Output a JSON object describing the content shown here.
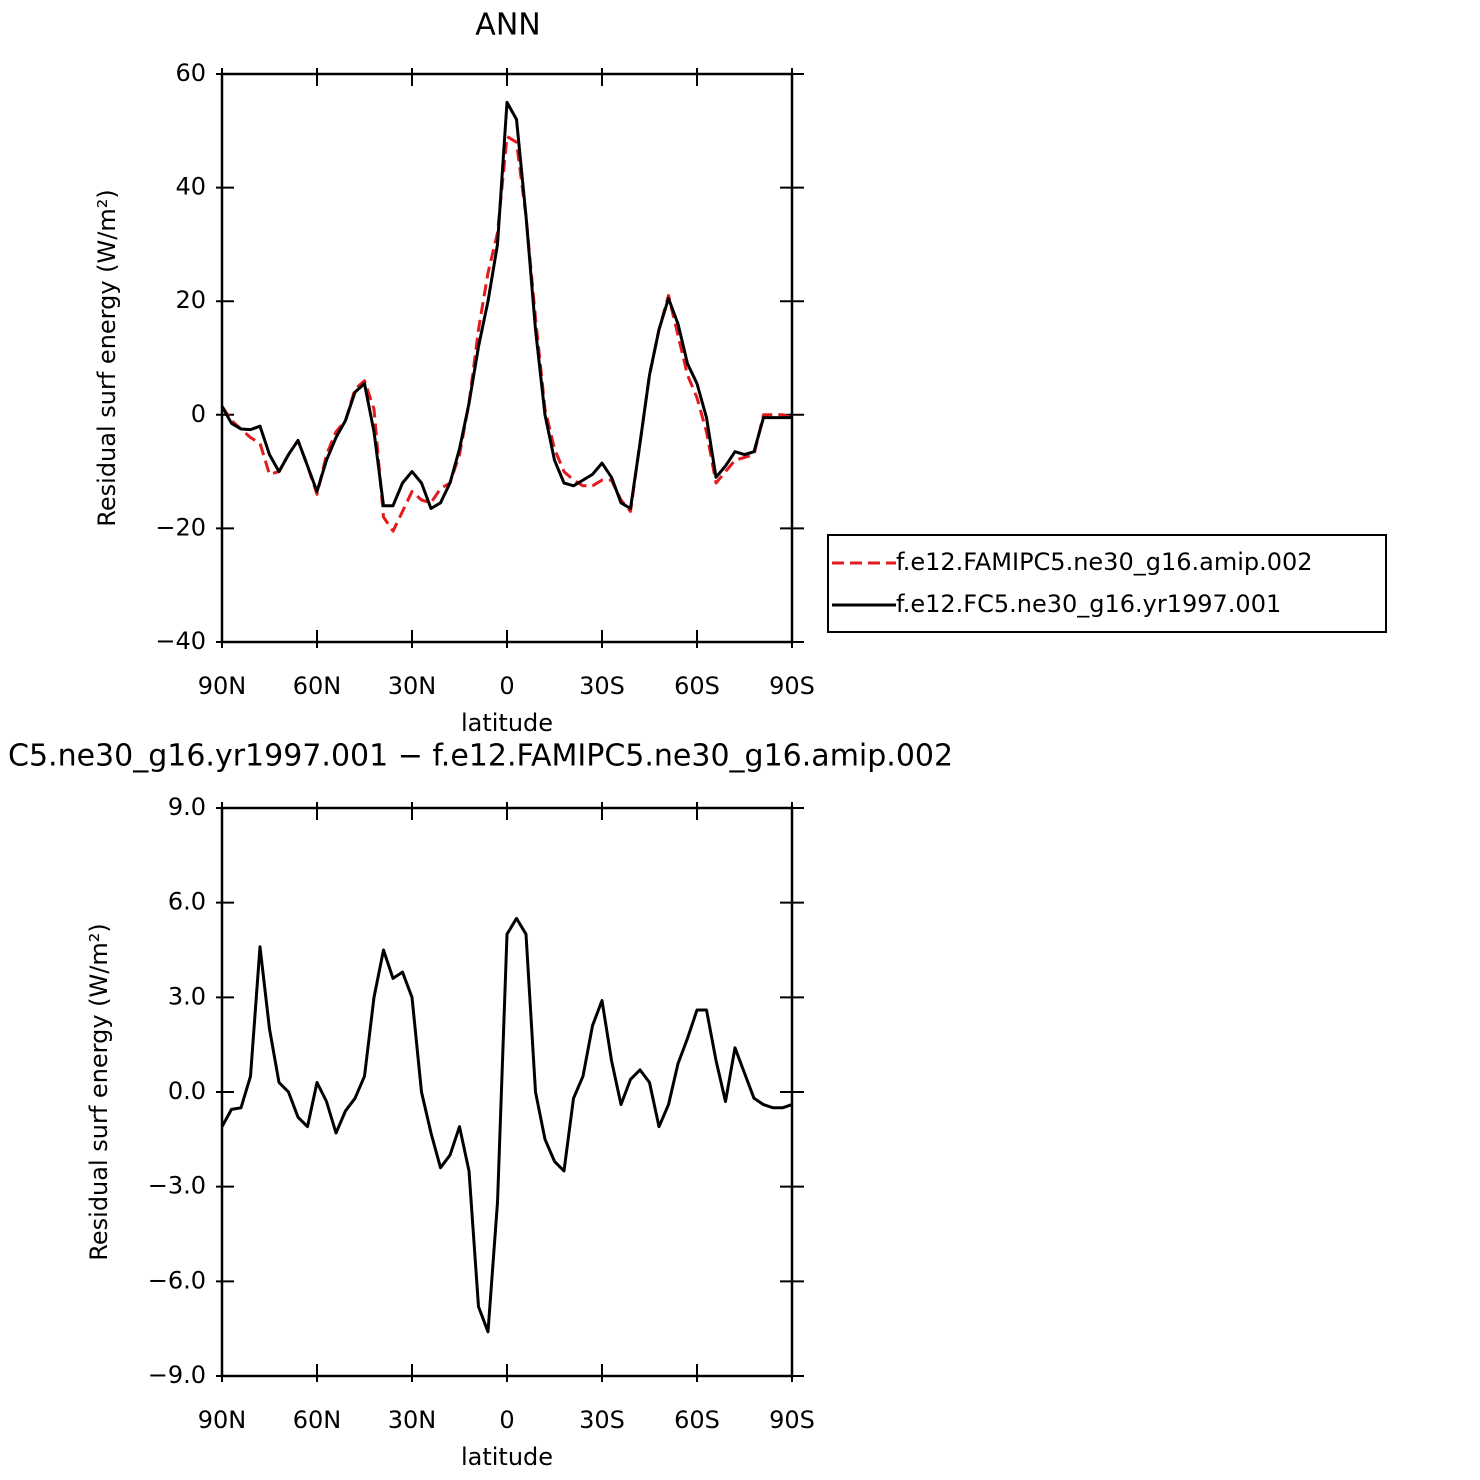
{
  "chart_data": [
    {
      "type": "line",
      "title": "ANN",
      "xlabel": "latitude",
      "ylabel": "Residual surf energy (W/m²)",
      "x": [
        90,
        87,
        84,
        81,
        78,
        75,
        72,
        69,
        66,
        63,
        60,
        57,
        54,
        51,
        48,
        45,
        42,
        39,
        36,
        33,
        30,
        27,
        24,
        21,
        18,
        15,
        12,
        9,
        6,
        3,
        0,
        -3,
        -6,
        -9,
        -12,
        -15,
        -18,
        -21,
        -24,
        -27,
        -30,
        -33,
        -36,
        -39,
        -42,
        -45,
        -48,
        -51,
        -54,
        -57,
        -60,
        -63,
        -66,
        -69,
        -72,
        -75,
        -78,
        -81,
        -84,
        -87,
        -90
      ],
      "series": [
        {
          "name": "f.e12.FAMIPC5.ne30_g16.amip.002",
          "color": "#e41a1c",
          "dashed": true,
          "values": [
            1.5,
            -1,
            -2.5,
            -4,
            -5,
            -10.5,
            -10,
            -7,
            -4.5,
            -9,
            -14,
            -7,
            -3,
            -1,
            4.5,
            6,
            1,
            -18,
            -20.5,
            -17,
            -13.5,
            -15,
            -15.5,
            -13,
            -12,
            -7,
            2,
            15,
            25,
            32,
            49,
            48,
            35,
            17,
            1,
            -6,
            -10,
            -11.5,
            -12.5,
            -12.5,
            -11.5,
            -11.5,
            -15,
            -17,
            -5,
            7,
            15,
            21,
            14,
            7,
            3,
            -3,
            -12,
            -10,
            -8,
            -7.5,
            -7,
            0,
            0,
            0,
            -0.5
          ]
        },
        {
          "name": "f.e12.FC5.ne30_g16.yr1997.001",
          "color": "#000000",
          "dashed": false,
          "values": [
            1.5,
            -1.5,
            -2.5,
            -2.6,
            -2,
            -7,
            -10,
            -7,
            -4.5,
            -9,
            -13.5,
            -8,
            -4,
            -1,
            4,
            5.5,
            -3,
            -16,
            -16,
            -12,
            -10,
            -12,
            -16.5,
            -15.5,
            -12,
            -6,
            2,
            12,
            20,
            30,
            55,
            52,
            35,
            15,
            0,
            -8,
            -12,
            -12.5,
            -11.5,
            -10.5,
            -8.5,
            -11,
            -15.5,
            -16.5,
            -5,
            7,
            15,
            20.5,
            16,
            9,
            5.5,
            -0.5,
            -11,
            -9,
            -6.5,
            -7,
            -6.5,
            -0.5,
            -0.5,
            -0.5,
            -0.5
          ]
        }
      ],
      "xlim": [
        90,
        -90
      ],
      "xticks": [
        {
          "value": 90,
          "label": "90N"
        },
        {
          "value": 60,
          "label": "60N"
        },
        {
          "value": 30,
          "label": "30N"
        },
        0,
        {
          "value": -30,
          "label": "30S"
        },
        {
          "value": -60,
          "label": "60S"
        },
        {
          "value": -90,
          "label": "90S"
        }
      ],
      "ylim": [
        -40,
        60
      ],
      "yticks": [
        {
          "value": -40,
          "label": "−40"
        },
        {
          "value": -20,
          "label": "−20"
        },
        0,
        20,
        40,
        60
      ],
      "legend": "right"
    },
    {
      "type": "line",
      "title": "C5.ne30_g16.yr1997.001 − f.e12.FAMIPC5.ne30_g16.amip.002",
      "xlabel": "latitude",
      "ylabel": "Residual surf energy (W/m²)",
      "x": [
        90,
        87,
        84,
        81,
        78,
        75,
        72,
        69,
        66,
        63,
        60,
        57,
        54,
        51,
        48,
        45,
        42,
        39,
        36,
        33,
        30,
        27,
        24,
        21,
        18,
        15,
        12,
        9,
        6,
        3,
        0,
        -3,
        -6,
        -9,
        -12,
        -15,
        -18,
        -21,
        -24,
        -27,
        -30,
        -33,
        -36,
        -39,
        -42,
        -45,
        -48,
        -51,
        -54,
        -57,
        -60,
        -63,
        -66,
        -69,
        -72,
        -75,
        -78,
        -81,
        -84,
        -87,
        -90
      ],
      "color": "#000000",
      "values": [
        -1.1,
        -0.55,
        -0.5,
        0.5,
        4.6,
        2.0,
        0.3,
        0.0,
        -0.8,
        -1.1,
        0.3,
        -0.3,
        -1.3,
        -0.6,
        -0.2,
        0.5,
        3.0,
        4.5,
        3.6,
        3.8,
        3.0,
        0.0,
        -1.3,
        -2.4,
        -2.0,
        -1.1,
        -2.5,
        -6.8,
        -7.6,
        -3.5,
        5.0,
        5.5,
        5.0,
        0.0,
        -1.5,
        -2.2,
        -2.5,
        -0.2,
        0.5,
        2.1,
        2.9,
        1.0,
        -0.4,
        0.4,
        0.7,
        0.3,
        -1.1,
        -0.4,
        0.9,
        1.7,
        2.6,
        2.6,
        1.0,
        -0.3,
        1.4,
        0.6,
        -0.2,
        -0.4,
        -0.5,
        -0.5,
        -0.4
      ],
      "xlim": [
        90,
        -90
      ],
      "xticks": [
        {
          "value": 90,
          "label": "90N"
        },
        {
          "value": 60,
          "label": "60N"
        },
        {
          "value": 30,
          "label": "30N"
        },
        0,
        {
          "value": -30,
          "label": "30S"
        },
        {
          "value": -60,
          "label": "60S"
        },
        {
          "value": -90,
          "label": "90S"
        }
      ],
      "ylim": [
        -9,
        9
      ],
      "yticks": [
        {
          "value": -9,
          "label": "−9.0"
        },
        {
          "value": -6,
          "label": "−6.0"
        },
        {
          "value": -3,
          "label": "−3.0"
        },
        {
          "value": 0,
          "label": "0.0"
        },
        {
          "value": 3,
          "label": "3.0"
        },
        {
          "value": 6,
          "label": "6.0"
        },
        {
          "value": 9,
          "label": "9.0"
        }
      ]
    }
  ]
}
